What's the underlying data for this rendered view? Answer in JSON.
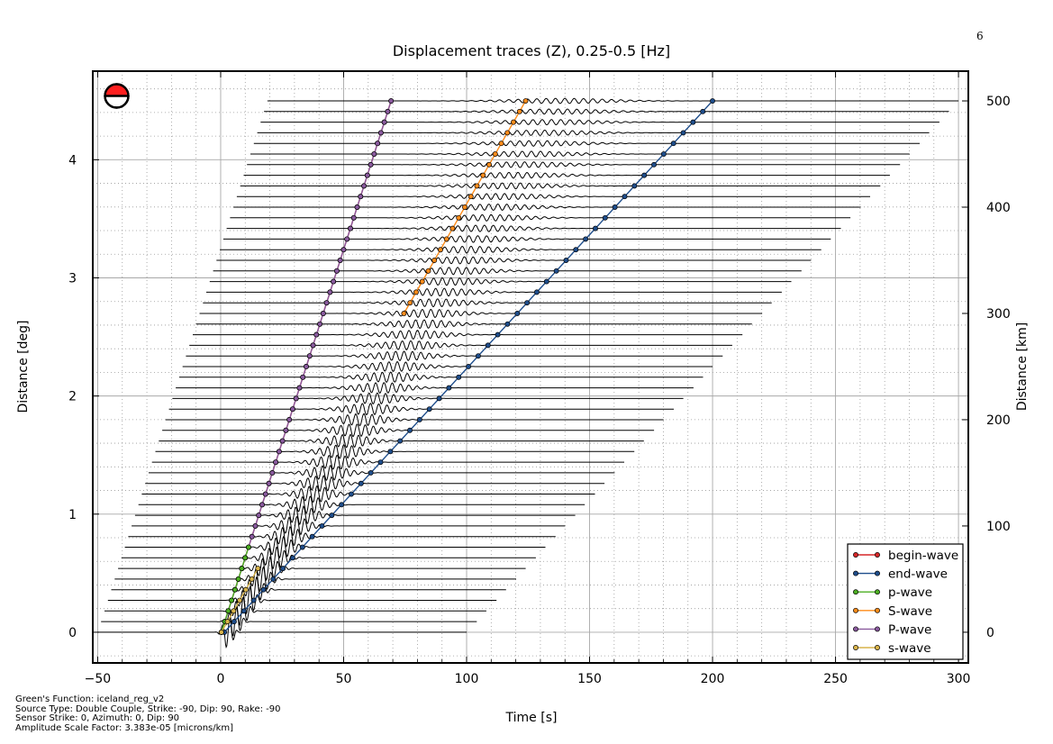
{
  "page_number": "6",
  "chart_data": {
    "type": "line",
    "title": "Displacement traces (Z), 0.25-0.5 [Hz]",
    "xlabel": "Time [s]",
    "ylabel": "Distance [deg]",
    "ylabel_right": "Distance [km]",
    "xlim": [
      -52,
      304
    ],
    "ylim": [
      -0.26,
      4.75
    ],
    "ylim_km": [
      -28.9,
      528
    ],
    "x_ticks": [
      -50,
      0,
      50,
      100,
      150,
      200,
      250,
      300
    ],
    "x_tick_labels": [
      "−50",
      "0",
      "50",
      "100",
      "150",
      "200",
      "250",
      "300"
    ],
    "y_ticks": [
      0,
      1,
      2,
      3,
      4
    ],
    "y_tick_labels": [
      "0",
      "1",
      "2",
      "3",
      "4"
    ],
    "y2_ticks": [
      0,
      100,
      200,
      300,
      400,
      500
    ],
    "y2_tick_labels": [
      "0",
      "100",
      "200",
      "300",
      "400",
      "500"
    ],
    "grid": true,
    "traces": {
      "count": 51,
      "dist_km_start": 0,
      "dist_km_step": 10,
      "start_time_at_0km": -50,
      "start_time_at_500km": 19,
      "end_time_at_0km": 100,
      "end_time_at_500km": 300
    },
    "series": [
      {
        "name": "begin-wave",
        "color": "#d62728",
        "x_at_0km": 0.3,
        "x_at_500km": 69.3,
        "dist_km_range": [
          0,
          500
        ]
      },
      {
        "name": "end-wave",
        "color": "#1f4e8c",
        "x_at_0km": 1.5,
        "x_at_500km": 200,
        "dist_km_range": [
          0,
          500
        ]
      },
      {
        "name": "p-wave",
        "color": "#4caf22",
        "x_at_0km": 0.3,
        "x_at_500km": 69.3,
        "dist_km_range": [
          0,
          80
        ]
      },
      {
        "name": "S-wave",
        "color": "#ff8c1a",
        "x_at_0km": 0.3,
        "x_at_500km": 124,
        "dist_km_range": [
          300,
          500
        ]
      },
      {
        "name": "P-wave",
        "color": "#8a5a9e",
        "x_at_0km": 0.3,
        "x_at_500km": 69.3,
        "dist_km_range": [
          0,
          500
        ]
      },
      {
        "name": "s-wave",
        "color": "#d9b44a",
        "x_at_0km": 0.3,
        "x_at_500km": 124,
        "dist_km_range": [
          0,
          60
        ]
      }
    ],
    "legend": {
      "position": "lower-right",
      "entries": [
        "begin-wave",
        "end-wave",
        "p-wave",
        "S-wave",
        "P-wave",
        "s-wave"
      ]
    },
    "beachball": {
      "color": "#ff2020"
    }
  },
  "info": {
    "line1": "Green's Function: iceland_reg_v2",
    "line2": "Source Type: Double Couple, Strike: -90, Dip: 90, Rake: -90",
    "line3": "Sensor Strike: 0, Azimuth: 0, Dip: 90",
    "line4": "Amplitude Scale Factor: 3.383e-05 [microns/km]"
  }
}
